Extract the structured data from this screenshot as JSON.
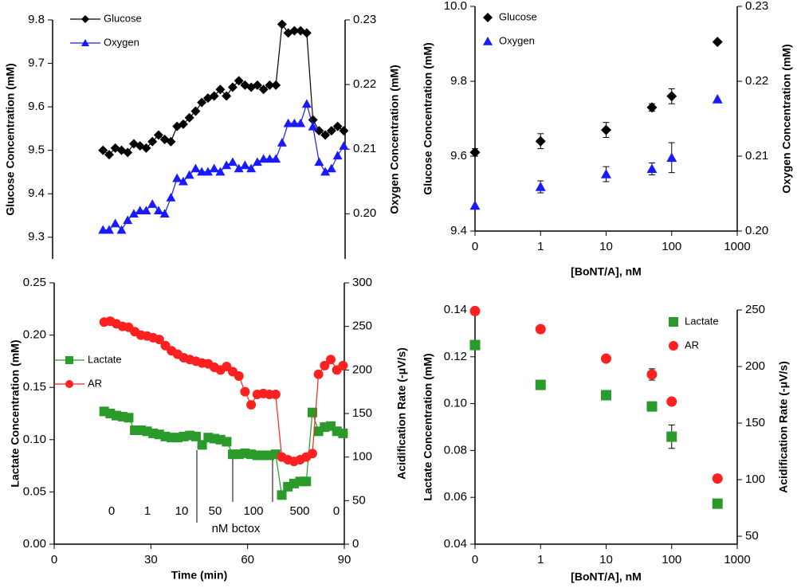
{
  "chart_data": [
    {
      "type": "line",
      "y_label": "Glucose Concentration (mM)",
      "y2_label": "Oxygen Concentration (mM)",
      "x": [
        15.5,
        17.4,
        19.3,
        21.2,
        23.1,
        25.0,
        26.9,
        28.8,
        30.7,
        32.6,
        34.5,
        36.4,
        38.3,
        40.2,
        42.1,
        44.0,
        45.9,
        47.8,
        49.7,
        51.6,
        53.5,
        55.4,
        57.3,
        59.2,
        61.1,
        63.0,
        64.9,
        66.8,
        68.7,
        70.6,
        72.5,
        74.4,
        76.3,
        78.2,
        80.1,
        82.0,
        83.9,
        85.8,
        87.7,
        89.6
      ],
      "xlim": [
        0,
        90
      ],
      "ylim": [
        9.25,
        9.8
      ],
      "yticks": [
        9.3,
        9.4,
        9.5,
        9.6,
        9.7,
        9.8
      ],
      "y2lim": [
        0.193,
        0.23
      ],
      "y2ticks": [
        {
          "value": 0.2,
          "label": "0.20"
        },
        0.21,
        0.22,
        0.23
      ],
      "legend": "upper left",
      "series": [
        {
          "name": "Glucose",
          "color": "#000000",
          "marker": "diamond",
          "values": [
            9.5,
            9.49,
            9.505,
            9.5,
            9.495,
            9.515,
            9.51,
            9.505,
            9.52,
            9.535,
            9.525,
            9.52,
            9.555,
            9.56,
            9.575,
            9.59,
            9.61,
            9.62,
            9.625,
            9.64,
            9.625,
            9.645,
            9.66,
            9.65,
            9.645,
            9.65,
            9.64,
            9.65,
            9.65,
            9.79,
            9.77,
            9.775,
            9.775,
            9.77,
            9.57,
            9.545,
            9.535,
            9.545,
            9.555,
            9.545
          ]
        },
        {
          "name": "Oxygen",
          "color": "#1a1aff",
          "marker": "triangle",
          "axis": "y2",
          "values": [
            0.1975,
            0.1975,
            0.1985,
            0.1975,
            0.199,
            0.2,
            0.2005,
            0.2005,
            0.2015,
            0.2005,
            0.2,
            0.2025,
            0.2055,
            0.205,
            0.206,
            0.207,
            0.2065,
            0.2065,
            0.207,
            0.2065,
            0.2075,
            0.208,
            0.207,
            0.2075,
            0.207,
            0.208,
            0.2085,
            0.2085,
            0.2085,
            0.211,
            0.214,
            0.214,
            0.214,
            0.217,
            0.2135,
            0.208,
            0.2065,
            0.207,
            0.209,
            0.2105
          ]
        }
      ]
    },
    {
      "type": "scatter",
      "x_label": "[BoNT/A], nM",
      "y_label": "Glucose Concentration (mM)",
      "y2_label": "Oxygen Concentration (mM)",
      "x": [
        0.1,
        1,
        10,
        50,
        100,
        500
      ],
      "xscale": "log",
      "xlim": [
        0.1,
        1000
      ],
      "xticks": [
        {
          "value": 0.1,
          "label": "0"
        },
        1,
        10,
        100,
        1000
      ],
      "ylim": [
        9.4,
        10.0
      ],
      "yticks": [
        9.4,
        9.6,
        9.8,
        {
          "value": 10.0,
          "label": "10.0"
        }
      ],
      "y2lim": [
        0.2,
        0.23
      ],
      "y2ticks": [
        {
          "value": 0.2,
          "label": "0.20"
        },
        0.21,
        0.22,
        0.23
      ],
      "legend": "upper left",
      "series": [
        {
          "name": "Glucose",
          "color": "#000000",
          "marker": "diamond",
          "values": [
            9.61,
            9.64,
            9.67,
            9.73,
            9.76,
            9.905
          ],
          "errors": [
            0.01,
            0.02,
            0.02,
            0.01,
            0.02,
            null
          ]
        },
        {
          "name": "Oxygen",
          "color": "#1a1aff",
          "marker": "triangle",
          "axis": "y2",
          "values": [
            0.2034,
            0.2059,
            0.2076,
            0.2083,
            0.2098,
            0.2176
          ],
          "errors": [
            null,
            0.0008,
            0.001,
            0.0008,
            0.002,
            null
          ]
        }
      ]
    },
    {
      "type": "line",
      "x_label": "Time (min)",
      "y_label": "Lactate Concentration (mM)",
      "y2_label": "Acidification Rate (-μV/s)",
      "x": [
        15.5,
        17.4,
        19.3,
        21.2,
        23.1,
        25.0,
        26.9,
        28.8,
        30.7,
        32.6,
        34.5,
        36.4,
        38.3,
        40.2,
        42.1,
        44.0,
        45.9,
        47.8,
        49.7,
        51.6,
        53.5,
        55.4,
        57.3,
        59.2,
        61.1,
        63.0,
        64.9,
        66.8,
        68.7,
        70.6,
        72.5,
        74.4,
        76.3,
        78.2,
        80.1,
        82.0,
        83.9,
        85.8,
        87.7,
        89.6
      ],
      "xlim": [
        0,
        90
      ],
      "xticks": [
        0,
        30,
        60,
        90
      ],
      "ylim": [
        0,
        0.25
      ],
      "yticks": [
        {
          "value": 0,
          "label": "0.00"
        },
        {
          "value": 0.05,
          "label": "0.05"
        },
        {
          "value": 0.1,
          "label": "0.10"
        },
        {
          "value": 0.15,
          "label": "0.15"
        },
        {
          "value": 0.2,
          "label": "0.20"
        },
        {
          "value": 0.25,
          "label": "0.25"
        }
      ],
      "y2lim": [
        0,
        300
      ],
      "y2ticks": [
        0,
        50,
        100,
        150,
        200,
        250,
        300
      ],
      "legend": "center left",
      "annotations": [
        "0",
        "1",
        "10",
        "50",
        "100",
        "500",
        "0",
        "nM bctox"
      ],
      "series": [
        {
          "name": "Lactate",
          "color": "#2a9a2a",
          "marker": "square",
          "values": [
            0.127,
            0.125,
            0.123,
            0.122,
            0.121,
            0.109,
            0.109,
            0.108,
            0.106,
            0.105,
            0.103,
            0.102,
            0.102,
            0.103,
            0.104,
            0.103,
            0.095,
            0.102,
            0.101,
            0.1,
            0.098,
            0.086,
            0.086,
            0.087,
            0.086,
            0.085,
            0.085,
            0.085,
            0.086,
            0.047,
            0.055,
            0.058,
            0.06,
            0.06,
            0.126,
            0.108,
            0.112,
            0.113,
            0.108,
            0.106
          ]
        },
        {
          "name": "AR",
          "color": "#ff2020",
          "marker": "circle",
          "axis": "y2",
          "values": [
            255,
            256,
            253,
            250,
            249,
            244,
            240,
            239,
            237,
            235,
            228,
            222,
            218,
            214,
            212,
            210,
            208,
            207,
            203,
            200,
            204,
            198,
            193,
            175,
            160,
            172,
            173,
            172,
            172,
            100,
            97,
            95,
            97,
            100,
            104,
            195,
            205,
            212,
            200,
            205
          ]
        }
      ]
    },
    {
      "type": "scatter",
      "x_label": "[BoNT/A], nM",
      "y_label": "Lactate Concentration (mM)",
      "y2_label": "Acidification Rate (-μV/s)",
      "x": [
        0.1,
        1,
        10,
        50,
        100,
        500
      ],
      "xscale": "log",
      "xlim": [
        0.1,
        1000
      ],
      "xticks": [
        {
          "value": 0.1,
          "label": "0"
        },
        1,
        10,
        100,
        1000
      ],
      "ylim": [
        0.04,
        0.14
      ],
      "yticks": [
        {
          "value": 0.04,
          "label": "0.04"
        },
        {
          "value": 0.06,
          "label": "0.06"
        },
        {
          "value": 0.08,
          "label": "0.08"
        },
        {
          "value": 0.1,
          "label": "0.10"
        },
        {
          "value": 0.12,
          "label": "0.12"
        },
        {
          "value": 0.14,
          "label": "0.14"
        }
      ],
      "y2lim": [
        43,
        250
      ],
      "y2ticks": [
        50,
        100,
        150,
        200,
        250
      ],
      "legend": "upper right",
      "series": [
        {
          "name": "Lactate",
          "color": "#2a9a2a",
          "marker": "square",
          "values": [
            0.125,
            0.108,
            0.1036,
            0.0988,
            0.0859,
            0.0573
          ],
          "errors": [
            null,
            null,
            null,
            null,
            0.005,
            null
          ]
        },
        {
          "name": "AR",
          "color": "#ff2020",
          "marker": "circle",
          "axis": "y2",
          "values": [
            249,
            233,
            207,
            193,
            169,
            101
          ],
          "errors": [
            null,
            3,
            null,
            5,
            null,
            null
          ]
        }
      ]
    }
  ]
}
